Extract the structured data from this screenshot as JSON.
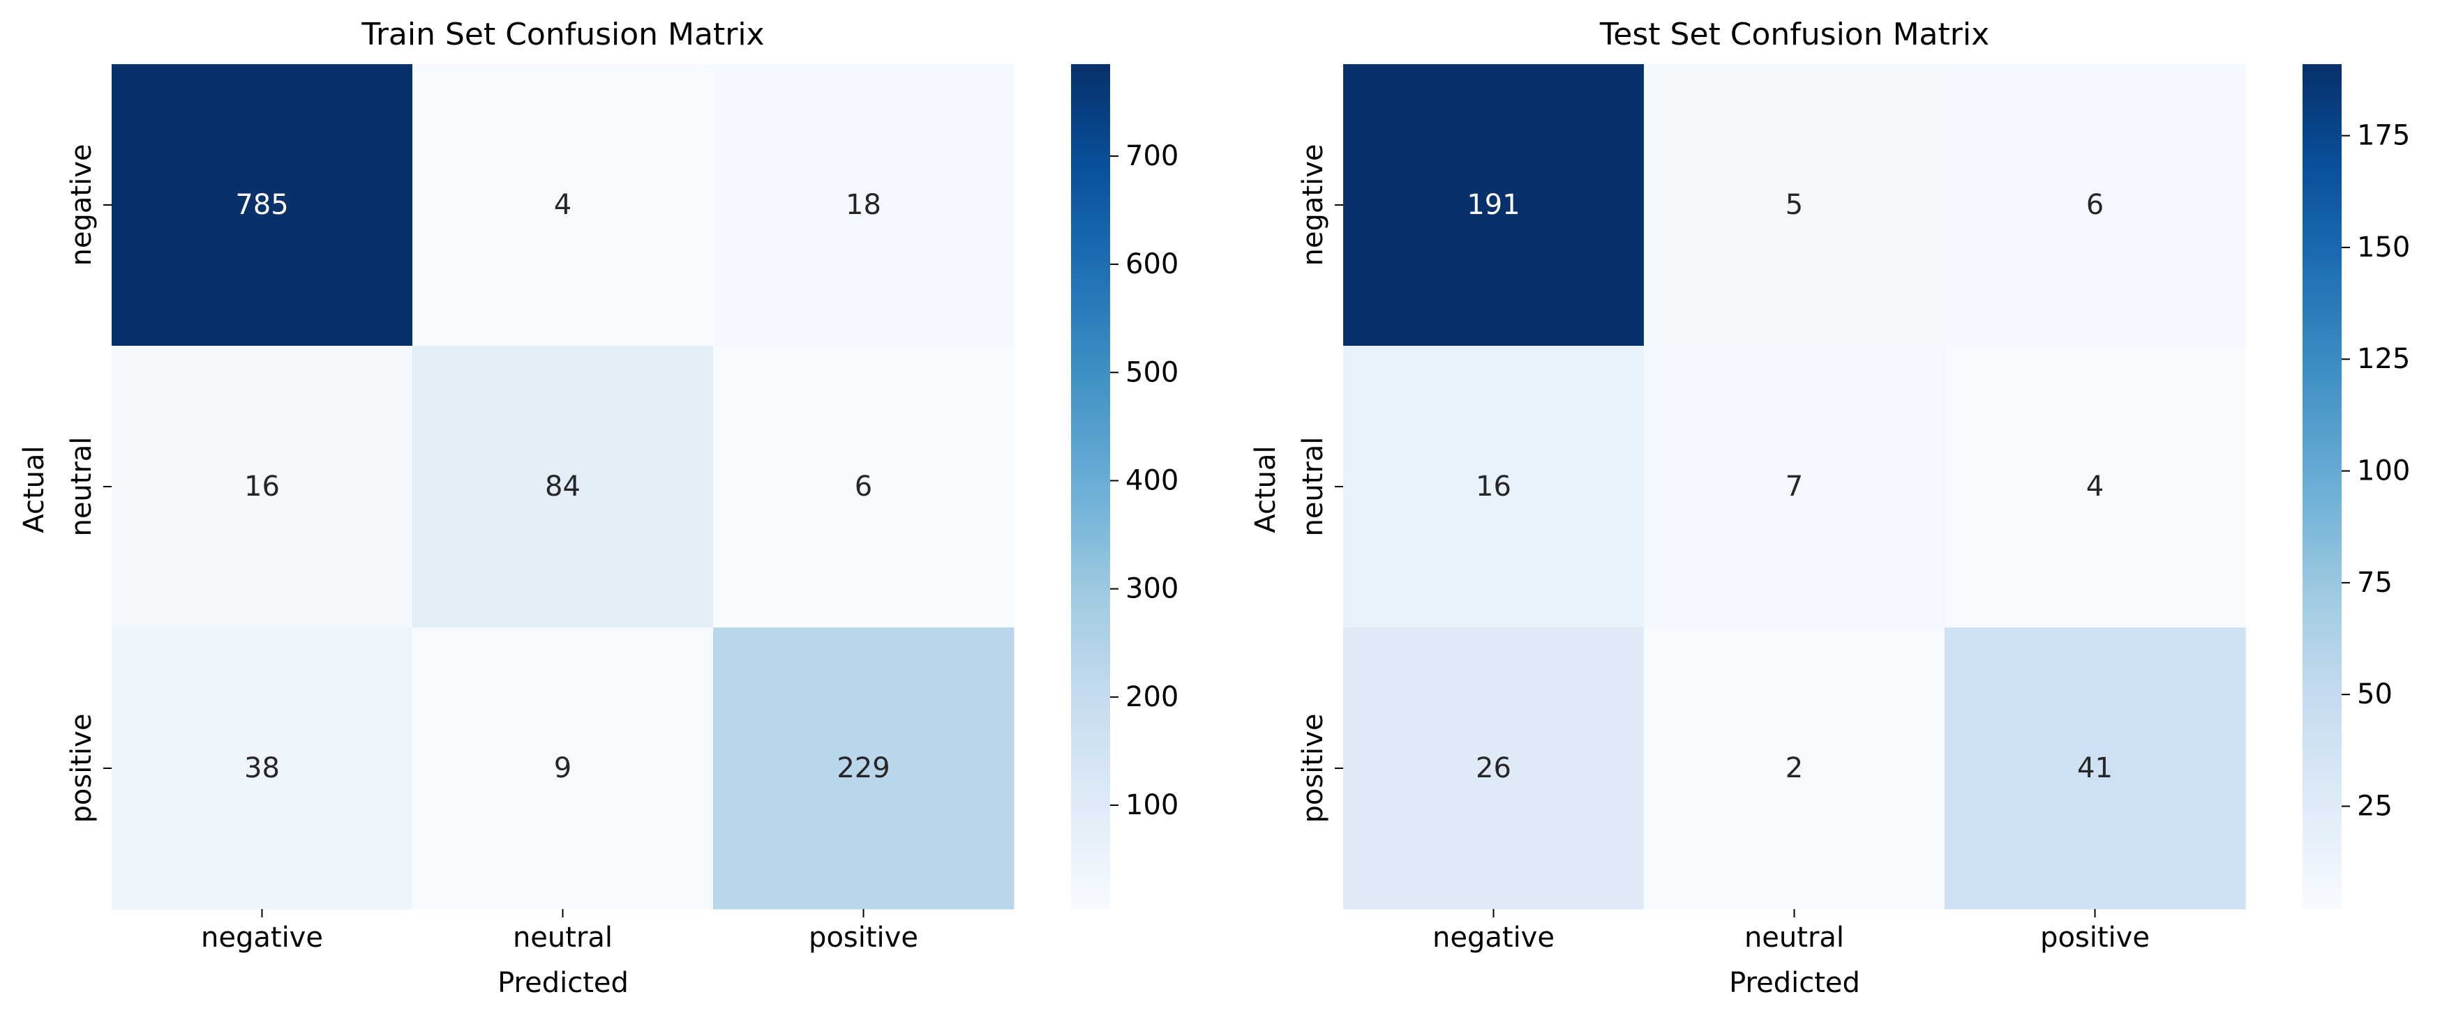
{
  "chart_data": [
    {
      "type": "heatmap",
      "title": "Train Set Confusion Matrix",
      "xlabel": "Predicted",
      "ylabel": "Actual",
      "x_categories": [
        "negative",
        "neutral",
        "positive"
      ],
      "y_categories": [
        "negative",
        "neutral",
        "positive"
      ],
      "values": [
        [
          785,
          4,
          18
        ],
        [
          16,
          84,
          6
        ],
        [
          38,
          9,
          229
        ]
      ],
      "colormap": "Blues",
      "vmin": 4,
      "vmax": 785,
      "colorbar_ticks": [
        100,
        200,
        300,
        400,
        500,
        600,
        700
      ],
      "annotations": true
    },
    {
      "type": "heatmap",
      "title": "Test Set Confusion Matrix",
      "xlabel": "Predicted",
      "ylabel": "Actual",
      "x_categories": [
        "negative",
        "neutral",
        "positive"
      ],
      "y_categories": [
        "negative",
        "neutral",
        "positive"
      ],
      "values": [
        [
          191,
          5,
          6
        ],
        [
          16,
          7,
          4
        ],
        [
          26,
          2,
          41
        ]
      ],
      "colormap": "Blues",
      "vmin": 2,
      "vmax": 191,
      "colorbar_ticks": [
        25,
        50,
        75,
        100,
        125,
        150,
        175
      ],
      "annotations": true
    }
  ],
  "colors": {
    "text_dark": "#262626",
    "text_light": "#ffffff",
    "axis": "#000000"
  }
}
